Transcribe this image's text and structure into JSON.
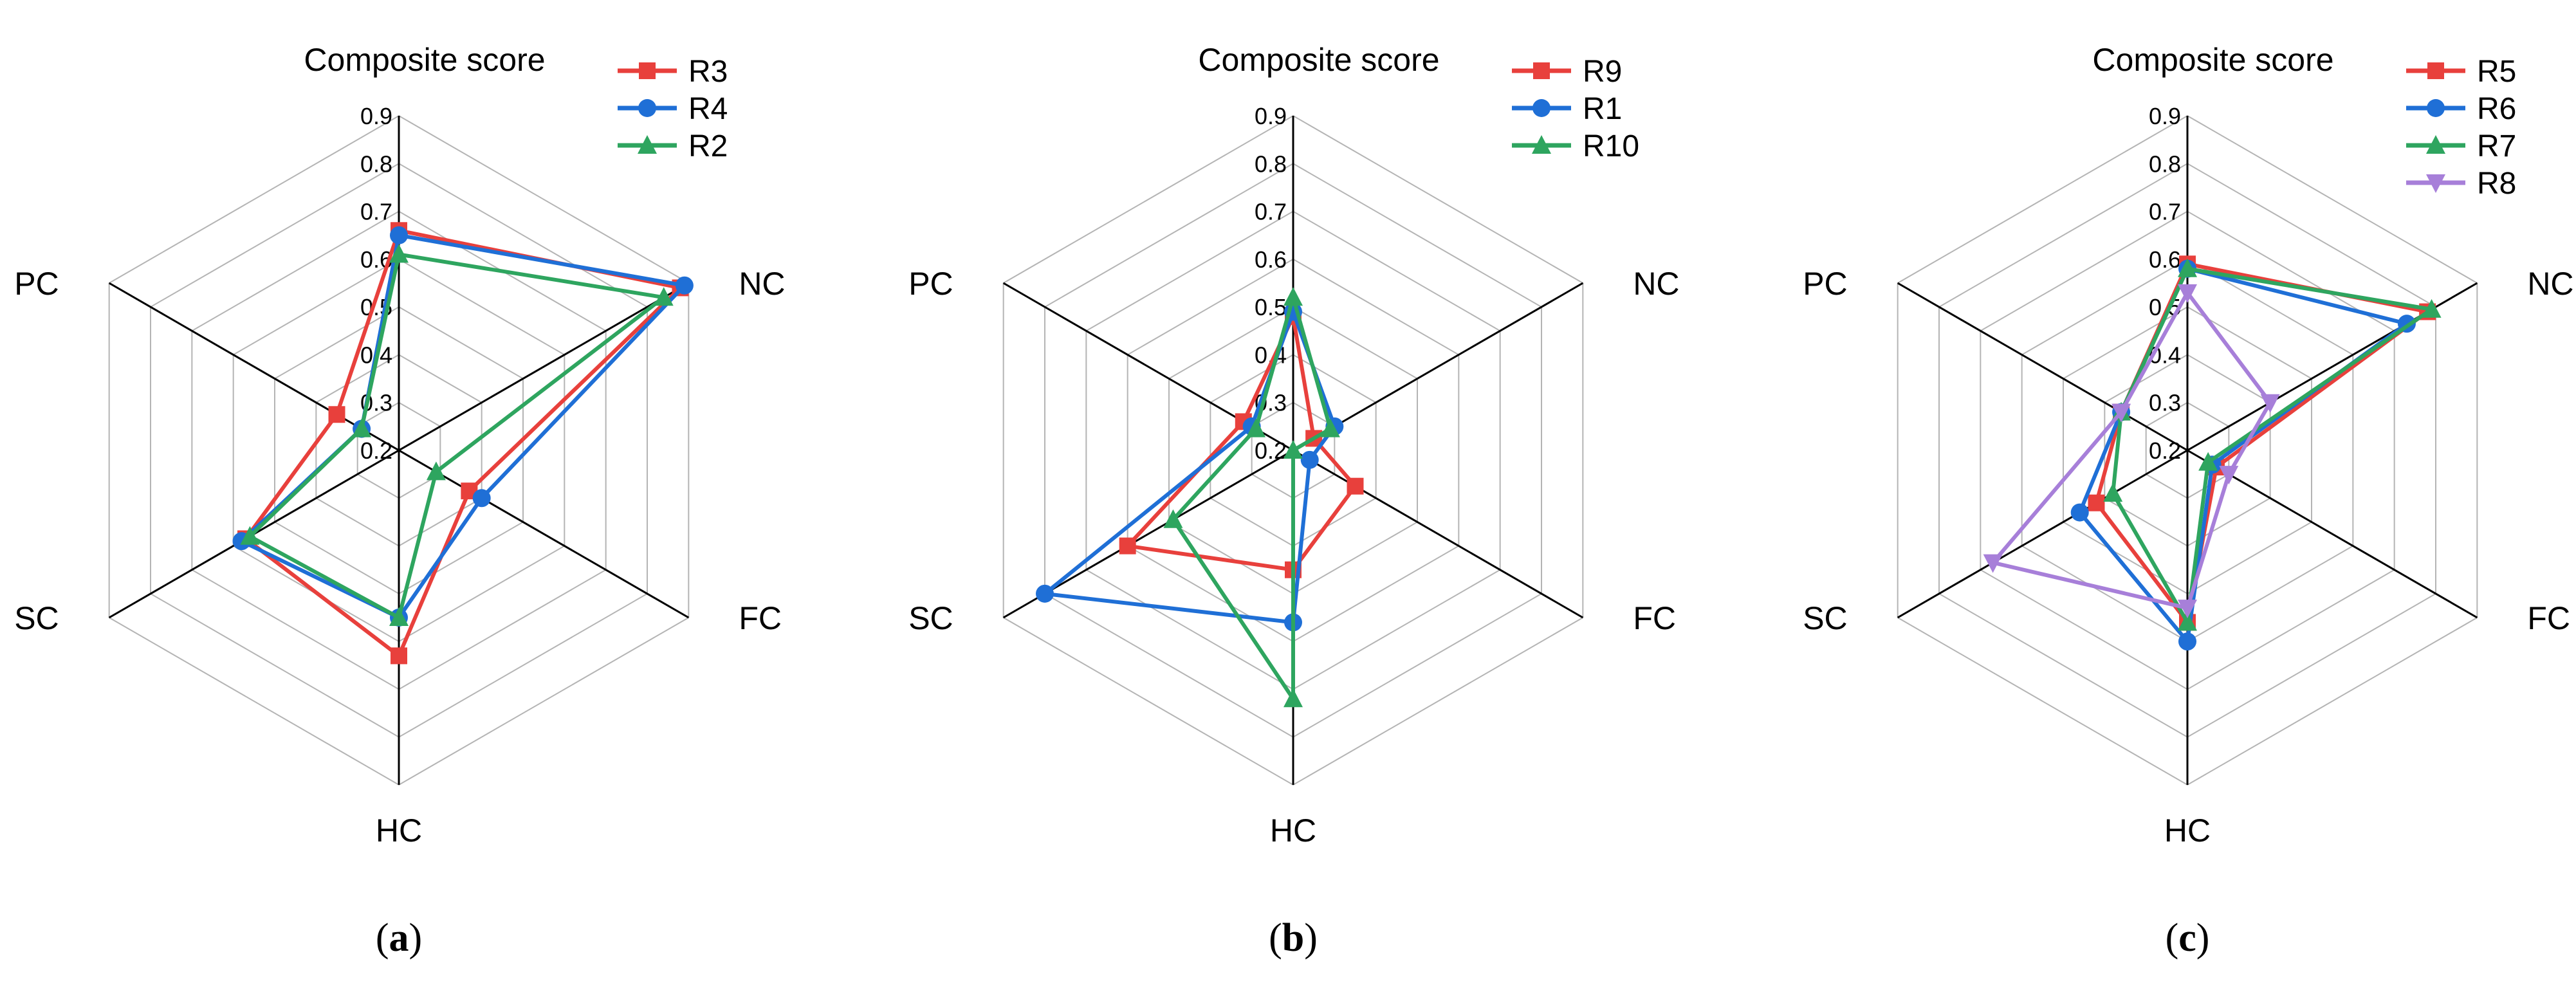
{
  "chart_data": [
    {
      "type": "radar",
      "title": "Composite score",
      "caption_letter": "a",
      "axes": [
        "NC",
        "FC",
        "HC",
        "SC",
        "PC"
      ],
      "rlim": [
        0.2,
        0.9
      ],
      "ticks": [
        "0.2",
        "0.3",
        "0.4",
        "0.5",
        "0.6",
        "0.7",
        "0.8",
        "0.9"
      ],
      "grid": true,
      "legend_position": "top-right",
      "series": [
        {
          "name": "R3",
          "color": "#e8403c",
          "marker": "square",
          "composite": 0.66,
          "values": [
            0.88,
            0.37,
            0.63,
            0.57,
            0.35
          ]
        },
        {
          "name": "R4",
          "color": "#1f6fd6",
          "marker": "circle",
          "composite": 0.65,
          "values": [
            0.89,
            0.4,
            0.55,
            0.58,
            0.29
          ]
        },
        {
          "name": "R2",
          "color": "#2ea55f",
          "marker": "triangle-up",
          "composite": 0.61,
          "values": [
            0.84,
            0.29,
            0.55,
            0.56,
            0.29
          ]
        }
      ]
    },
    {
      "type": "radar",
      "title": "Composite score",
      "caption_letter": "b",
      "axes": [
        "NC",
        "FC",
        "HC",
        "SC",
        "PC"
      ],
      "rlim": [
        0.2,
        0.9
      ],
      "ticks": [
        "0.2",
        "0.3",
        "0.4",
        "0.5",
        "0.6",
        "0.7",
        "0.8",
        "0.9"
      ],
      "grid": true,
      "legend_position": "top-right",
      "series": [
        {
          "name": "R9",
          "color": "#e8403c",
          "marker": "square",
          "composite": 0.48,
          "values": [
            0.25,
            0.35,
            0.45,
            0.6,
            0.32
          ]
        },
        {
          "name": "R1",
          "color": "#1f6fd6",
          "marker": "circle",
          "composite": 0.49,
          "values": [
            0.3,
            0.24,
            0.56,
            0.8,
            0.3
          ]
        },
        {
          "name": "R10",
          "color": "#2ea55f",
          "marker": "triangle-up",
          "composite": 0.52,
          "values": [
            0.29,
            0.2,
            0.72,
            0.49,
            0.29
          ]
        }
      ]
    },
    {
      "type": "radar",
      "title": "Composite score",
      "caption_letter": "c",
      "axes": [
        "NC",
        "FC",
        "HC",
        "SC",
        "PC"
      ],
      "rlim": [
        0.2,
        0.9
      ],
      "ticks": [
        "0.2",
        "0.3",
        "0.4",
        "0.5",
        "0.6",
        "0.7",
        "0.8",
        "0.9"
      ],
      "grid": true,
      "legend_position": "top-right",
      "series": [
        {
          "name": "R5",
          "color": "#e8403c",
          "marker": "square",
          "composite": 0.59,
          "values": [
            0.78,
            0.27,
            0.56,
            0.42,
            0.36
          ]
        },
        {
          "name": "R6",
          "color": "#1f6fd6",
          "marker": "circle",
          "composite": 0.58,
          "values": [
            0.73,
            0.26,
            0.6,
            0.46,
            0.36
          ]
        },
        {
          "name": "R7",
          "color": "#2ea55f",
          "marker": "triangle-up",
          "composite": 0.58,
          "values": [
            0.79,
            0.25,
            0.56,
            0.38,
            0.36
          ]
        },
        {
          "name": "R8",
          "color": "#a77fd9",
          "marker": "triangle-down",
          "composite": 0.53,
          "values": [
            0.4,
            0.3,
            0.53,
            0.67,
            0.36
          ]
        }
      ]
    }
  ]
}
